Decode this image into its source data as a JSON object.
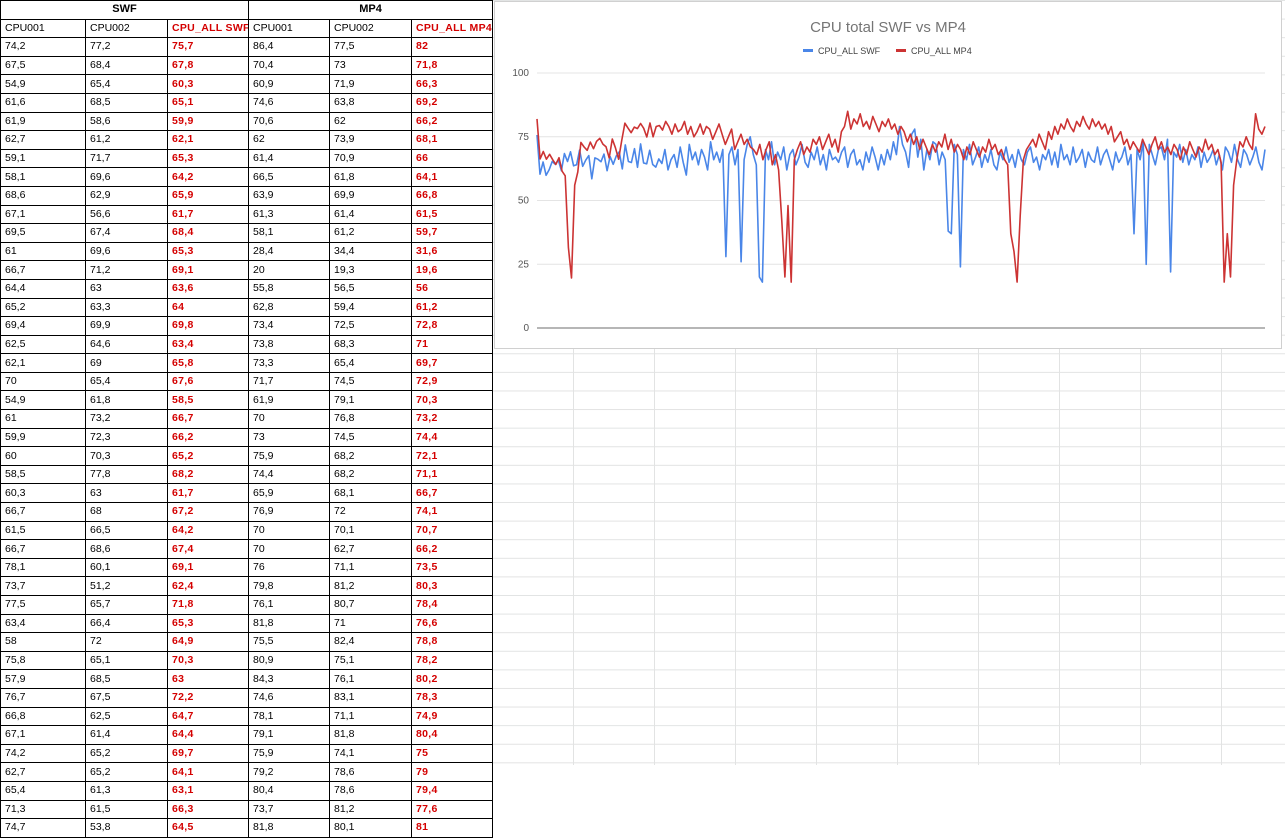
{
  "table": {
    "groups": [
      "SWF",
      "MP4"
    ],
    "columns": [
      "CPU001",
      "CPU002",
      "CPU_ALL SWF",
      "CPU001",
      "CPU002",
      "CPU_ALL MP4"
    ],
    "rows": [
      [
        "74,2",
        "77,2",
        "75,7",
        "86,4",
        "77,5",
        "82"
      ],
      [
        "67,5",
        "68,4",
        "67,8",
        "70,4",
        "73",
        "71,8"
      ],
      [
        "54,9",
        "65,4",
        "60,3",
        "60,9",
        "71,9",
        "66,3"
      ],
      [
        "61,6",
        "68,5",
        "65,1",
        "74,6",
        "63,8",
        "69,2"
      ],
      [
        "61,9",
        "58,6",
        "59,9",
        "70,6",
        "62",
        "66,2"
      ],
      [
        "62,7",
        "61,2",
        "62,1",
        "62",
        "73,9",
        "68,1"
      ],
      [
        "59,1",
        "71,7",
        "65,3",
        "61,4",
        "70,9",
        "66"
      ],
      [
        "58,1",
        "69,6",
        "64,2",
        "66,5",
        "61,8",
        "64,1"
      ],
      [
        "68,6",
        "62,9",
        "65,9",
        "63,9",
        "69,9",
        "66,8"
      ],
      [
        "67,1",
        "56,6",
        "61,7",
        "61,3",
        "61,4",
        "61,5"
      ],
      [
        "69,5",
        "67,4",
        "68,4",
        "58,1",
        "61,2",
        "59,7"
      ],
      [
        "61",
        "69,6",
        "65,3",
        "28,4",
        "34,4",
        "31,6"
      ],
      [
        "66,7",
        "71,2",
        "69,1",
        "20",
        "19,3",
        "19,6"
      ],
      [
        "64,4",
        "63",
        "63,6",
        "55,8",
        "56,5",
        "56"
      ],
      [
        "65,2",
        "63,3",
        "64",
        "62,8",
        "59,4",
        "61,2"
      ],
      [
        "69,4",
        "69,9",
        "69,8",
        "73,4",
        "72,5",
        "72,8"
      ],
      [
        "62,5",
        "64,6",
        "63,4",
        "73,8",
        "68,3",
        "71"
      ],
      [
        "62,1",
        "69",
        "65,8",
        "73,3",
        "65,4",
        "69,7"
      ],
      [
        "70",
        "65,4",
        "67,6",
        "71,7",
        "74,5",
        "72,9"
      ],
      [
        "54,9",
        "61,8",
        "58,5",
        "61,9",
        "79,1",
        "70,3"
      ],
      [
        "61",
        "73,2",
        "66,7",
        "70",
        "76,8",
        "73,2"
      ],
      [
        "59,9",
        "72,3",
        "66,2",
        "73",
        "74,5",
        "74,4"
      ],
      [
        "60",
        "70,3",
        "65,2",
        "75,9",
        "68,2",
        "72,1"
      ],
      [
        "58,5",
        "77,8",
        "68,2",
        "74,4",
        "68,2",
        "71,1"
      ],
      [
        "60,3",
        "63",
        "61,7",
        "65,9",
        "68,1",
        "66,7"
      ],
      [
        "66,7",
        "68",
        "67,2",
        "76,9",
        "72",
        "74,1"
      ],
      [
        "61,5",
        "66,5",
        "64,2",
        "70",
        "70,1",
        "70,7"
      ],
      [
        "66,7",
        "68,6",
        "67,4",
        "70",
        "62,7",
        "66,2"
      ],
      [
        "78,1",
        "60,1",
        "69,1",
        "76",
        "71,1",
        "73,5"
      ],
      [
        "73,7",
        "51,2",
        "62,4",
        "79,8",
        "81,2",
        "80,3"
      ],
      [
        "77,5",
        "65,7",
        "71,8",
        "76,1",
        "80,7",
        "78,4"
      ],
      [
        "63,4",
        "66,4",
        "65,3",
        "81,8",
        "71",
        "76,6"
      ],
      [
        "58",
        "72",
        "64,9",
        "75,5",
        "82,4",
        "78,8"
      ],
      [
        "75,8",
        "65,1",
        "70,3",
        "80,9",
        "75,1",
        "78,2"
      ],
      [
        "57,9",
        "68,5",
        "63",
        "84,3",
        "76,1",
        "80,2"
      ],
      [
        "76,7",
        "67,5",
        "72,2",
        "74,6",
        "83,1",
        "78,3"
      ],
      [
        "66,8",
        "62,5",
        "64,7",
        "78,1",
        "71,1",
        "74,9"
      ],
      [
        "67,1",
        "61,4",
        "64,4",
        "79,1",
        "81,8",
        "80,4"
      ],
      [
        "74,2",
        "65,2",
        "69,7",
        "75,9",
        "74,1",
        "75"
      ],
      [
        "62,7",
        "65,2",
        "64,1",
        "79,2",
        "78,6",
        "79"
      ],
      [
        "65,4",
        "61,3",
        "63,1",
        "80,4",
        "78,6",
        "79,4"
      ],
      [
        "71,3",
        "61,5",
        "66,3",
        "73,7",
        "81,2",
        "77,6"
      ],
      [
        "74,7",
        "53,8",
        "64,5",
        "81,8",
        "80,1",
        "81"
      ]
    ]
  },
  "chart_data": {
    "type": "line",
    "title": "CPU total SWF vs MP4",
    "legend_position": "top",
    "grid": true,
    "ylim": [
      0,
      100
    ],
    "yticks": [
      0,
      25,
      50,
      75,
      100
    ],
    "series": [
      {
        "name": "CPU_ALL SWF",
        "color": "#4a86e8",
        "values": [
          75.7,
          60.3,
          65.1,
          59.9,
          62.1,
          65.3,
          64.2,
          65.9,
          61.7,
          68.4,
          65.3,
          69.1,
          63.6,
          64,
          69.8,
          63.4,
          65.8,
          67.6,
          58.5,
          66.7,
          66.2,
          65.2,
          68.2,
          61.7,
          67.2,
          64.2,
          67.4,
          69.1,
          62.4,
          71.8,
          65.3,
          64.9,
          70.3,
          63,
          72.2,
          64.7,
          64.4,
          69.7,
          64.1,
          63.1,
          66.3,
          64.5,
          70,
          62,
          66,
          68,
          63,
          71,
          65,
          60,
          72,
          66,
          69,
          64,
          70,
          67,
          62,
          73,
          66,
          69,
          65,
          70,
          28,
          68,
          71,
          64,
          70,
          26,
          66,
          72,
          75,
          68,
          64,
          20,
          18,
          70,
          66,
          73,
          64,
          69,
          66,
          71,
          62,
          68,
          70,
          64,
          67,
          72,
          65,
          63,
          69,
          66,
          71,
          64,
          68,
          62,
          70,
          66,
          67,
          65,
          69,
          71,
          63,
          68,
          70,
          64,
          66,
          62,
          69,
          65,
          71,
          67,
          62,
          68,
          64,
          70,
          66,
          73,
          68,
          79,
          72,
          69,
          63,
          76,
          78,
          67,
          74,
          62,
          70,
          66,
          73,
          72,
          64,
          69,
          66,
          38,
          37,
          72,
          68,
          24,
          70,
          66,
          72,
          64,
          67,
          71,
          63,
          68,
          65,
          70,
          64,
          62,
          69,
          66,
          71,
          65,
          68,
          63,
          70,
          66,
          64,
          69,
          71,
          65,
          67,
          62,
          68,
          66,
          70,
          64,
          69,
          63,
          72,
          66,
          68,
          64,
          71,
          65,
          67,
          70,
          63,
          69,
          66,
          65,
          71,
          64,
          68,
          70,
          66,
          62,
          69,
          65,
          67,
          71,
          64,
          68,
          37,
          70,
          66,
          73,
          25,
          72,
          68,
          64,
          70,
          71,
          66,
          74,
          22,
          69,
          67,
          72,
          65,
          70,
          64,
          68,
          66,
          71,
          63,
          69,
          65,
          67,
          70,
          64,
          68,
          62,
          71,
          69,
          65,
          72,
          66,
          63,
          70,
          68,
          64,
          67,
          71,
          65,
          62,
          70
        ]
      },
      {
        "name": "CPU_ALL MP4",
        "color": "#cc3333",
        "values": [
          82,
          66.3,
          69.2,
          66.2,
          68.1,
          66,
          64.1,
          66.8,
          61.5,
          59.7,
          31.6,
          19.6,
          56,
          61.2,
          72.8,
          71,
          69.7,
          72.9,
          70.3,
          73.2,
          74.4,
          72.1,
          71.1,
          66.7,
          74.1,
          70.7,
          66.2,
          73.5,
          80.3,
          78.4,
          76.6,
          78.8,
          78.2,
          80.2,
          78.3,
          74.9,
          80.4,
          75,
          79,
          79.4,
          77.6,
          81,
          79,
          76,
          80,
          77,
          78,
          81,
          76,
          79,
          75,
          77,
          80,
          76,
          79,
          78,
          74,
          77,
          80,
          76,
          72,
          75,
          78,
          70,
          73,
          76,
          72,
          74,
          71,
          70,
          68,
          72,
          66,
          70,
          73,
          64,
          68,
          62,
          42,
          20,
          48,
          18,
          66,
          70,
          73,
          68,
          71,
          69,
          74,
          72,
          75,
          70,
          73,
          76,
          71,
          74,
          69,
          77,
          79,
          85,
          78,
          82,
          80,
          84,
          79,
          81,
          78,
          83,
          80,
          77,
          81,
          79,
          82,
          78,
          80,
          76,
          79,
          77,
          73,
          76,
          72,
          75,
          70,
          74,
          71,
          68,
          72,
          69,
          73,
          71,
          76,
          70,
          74,
          69,
          72,
          70,
          66,
          71,
          68,
          73,
          70,
          67,
          71,
          69,
          74,
          70,
          72,
          68,
          70,
          66,
          64,
          37,
          30,
          18,
          44,
          66,
          70,
          72,
          74,
          71,
          76,
          73,
          70,
          77,
          74,
          79,
          76,
          80,
          78,
          82,
          79,
          77,
          81,
          79,
          83,
          80,
          78,
          82,
          79,
          81,
          78,
          80,
          76,
          79,
          73,
          75,
          77,
          72,
          74,
          70,
          73,
          71,
          69,
          74,
          71,
          68,
          72,
          75,
          70,
          73,
          69,
          71,
          68,
          72,
          70,
          66,
          71,
          68,
          73,
          70,
          67,
          71,
          69,
          74,
          70,
          72,
          68,
          70,
          65,
          18,
          37,
          20,
          56,
          66,
          73,
          71,
          75,
          72,
          70,
          84,
          78,
          76,
          79
        ]
      }
    ]
  }
}
